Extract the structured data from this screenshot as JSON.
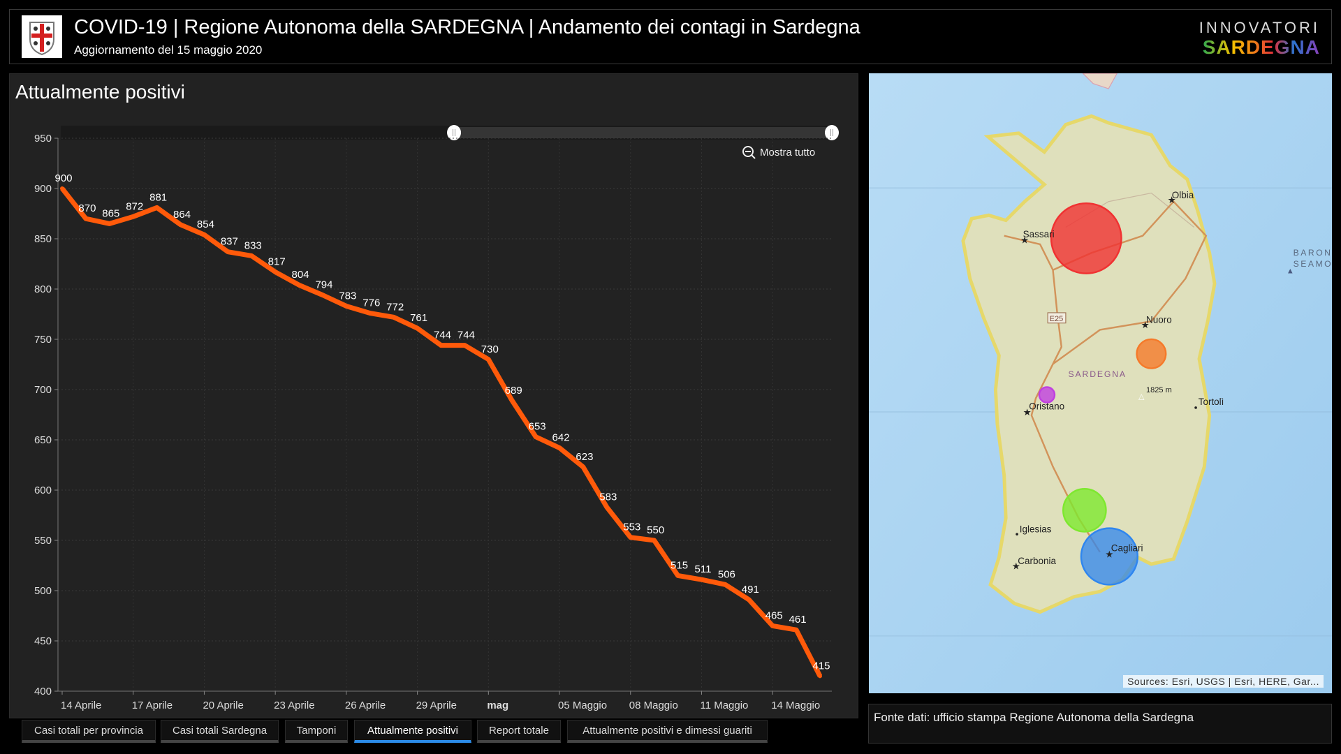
{
  "header": {
    "title": "COVID-19 | Regione Autonoma della SARDEGNA | Andamento dei contagi in Sardegna",
    "subtitle": "Aggiornamento del 15 maggio 2020",
    "brand_top": "INNOVATORI",
    "brand_bottom": "SARDEGNA"
  },
  "chart_panel": {
    "title": "Attualmente positivi",
    "zoom_reset_label": "Mostra tutto",
    "range_slider": {
      "start_fraction": 0.51,
      "end_fraction": 1.0
    }
  },
  "chart_data": {
    "type": "line",
    "title": "Attualmente positivi",
    "xlabel": "",
    "ylabel": "",
    "ylim": [
      400,
      950
    ],
    "yticks": [
      400,
      450,
      500,
      550,
      600,
      650,
      700,
      750,
      800,
      850,
      900,
      950
    ],
    "grid": true,
    "color": "#ff5a0a",
    "x": [
      0,
      1,
      2,
      3,
      4,
      5,
      6,
      7,
      8,
      9,
      10,
      11,
      12,
      13,
      14,
      15,
      16,
      17,
      18,
      19,
      20,
      21,
      22,
      23,
      24,
      25,
      26,
      27,
      28,
      29,
      30,
      31,
      32
    ],
    "values": [
      900,
      870,
      865,
      872,
      881,
      864,
      854,
      837,
      833,
      817,
      804,
      794,
      783,
      776,
      772,
      761,
      744,
      744,
      730,
      689,
      653,
      642,
      623,
      583,
      553,
      550,
      515,
      511,
      506,
      491,
      465,
      461,
      415
    ],
    "xticks": [
      {
        "x": 0,
        "label": "14 Aprile"
      },
      {
        "x": 3,
        "label": "17 Aprile"
      },
      {
        "x": 6,
        "label": "20 Aprile"
      },
      {
        "x": 9,
        "label": "23 Aprile"
      },
      {
        "x": 12,
        "label": "26 Aprile"
      },
      {
        "x": 15,
        "label": "29 Aprile"
      },
      {
        "x": 18,
        "label": "mag",
        "bold": true
      },
      {
        "x": 21,
        "label": "05 Maggio"
      },
      {
        "x": 24,
        "label": "08 Maggio"
      },
      {
        "x": 27,
        "label": "11 Maggio"
      },
      {
        "x": 30,
        "label": "14 Maggio"
      }
    ]
  },
  "tabs": [
    {
      "label": "Casi totali per provincia",
      "active": false
    },
    {
      "label": "Casi totali Sardegna",
      "active": false
    },
    {
      "label": "Tamponi",
      "active": false
    },
    {
      "label": "Attualmente positivi",
      "active": true
    },
    {
      "label": "Report totale",
      "active": false
    },
    {
      "label": "Attualmente positivi e dimessi guariti",
      "active": false
    }
  ],
  "map": {
    "region_label": "SARDEGNA",
    "road_label": "E25",
    "peak_label": "1825 m",
    "seamount_label_1": "BARON",
    "seamount_label_2": "SEAMO",
    "cities": [
      "Sassari",
      "Olbia",
      "Nuoro",
      "Oristano",
      "Tortolì",
      "Iglesias",
      "Carbonia",
      "Cagliari"
    ],
    "bubble_colors": {
      "sassari": "#f03232",
      "nuoro": "#f57a2a",
      "oristano": "#c040e0",
      "sud_sardegna": "#7ee830",
      "cagliari": "#2f86ef"
    },
    "attribution": "Sources: Esri, USGS | Esri, HERE, Gar..."
  },
  "source": {
    "text": "Fonte dati: ufficio stampa Regione Autonoma della Sardegna"
  }
}
